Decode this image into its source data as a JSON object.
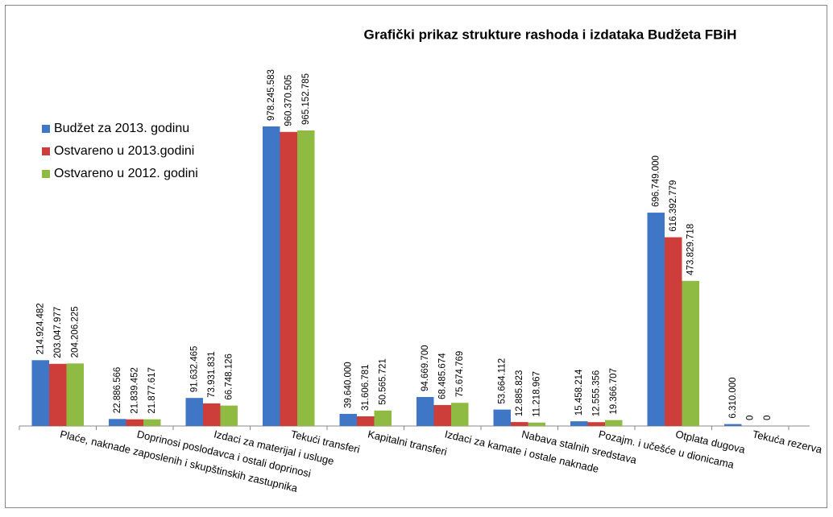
{
  "chart_data": {
    "type": "bar",
    "title": "Grafički prikaz strukture rashoda i izdataka Budžeta FBiH",
    "categories": [
      "Plaće, naknade zaposlenih i skupštinskih  zastupnika",
      "Doprinosi poslodavca i ostali doprinosi",
      "Izdaci za materijal i usluge",
      "Tekući transferi",
      "Kapitalni transferi",
      "Izdaci za kamate i ostale naknade",
      "Nabava stalnih sredstava",
      "Pozajm. i učešće u dionicama",
      "Otplata dugova",
      "Tekuća rezerva"
    ],
    "series": [
      {
        "name": "Budžet za 2013. godinu",
        "color": "#3f77c6",
        "values": [
          214924482,
          22886566,
          91632465,
          978245583,
          39640000,
          94669700,
          53664112,
          15458214,
          696749000,
          6310000
        ],
        "value_labels": [
          "214.924.482",
          "22.886.566",
          "91.632.465",
          "978.245.583",
          "39.640.000",
          "94.669.700",
          "53.664.112",
          "15.458.214",
          "696.749.000",
          "6.310.000"
        ]
      },
      {
        "name": "Ostvareno u 2013.godini",
        "color": "#cd3d3a",
        "values": [
          203047977,
          21839452,
          73931831,
          960370505,
          31606781,
          68485674,
          12885823,
          12555356,
          616392779,
          0
        ],
        "value_labels": [
          "203.047.977",
          "21.839.452",
          "73.931.831",
          "960.370.505",
          "31.606.781",
          "68.485.674",
          "12.885.823",
          "12.555.356",
          "616.392.779",
          "0"
        ]
      },
      {
        "name": "Ostvareno u 2012. godini",
        "color": "#8fbb42",
        "values": [
          204206225,
          21877617,
          66748126,
          965152785,
          50565721,
          75674769,
          11218967,
          19366707,
          473829718,
          0
        ],
        "value_labels": [
          "204.206.225",
          "21.877.617",
          "66.748.126",
          "965.152.785",
          "50.565.721",
          "75.674.769",
          "11.218.967",
          "19.366.707",
          "473.829.718",
          "0"
        ]
      }
    ],
    "legend": "left"
  }
}
